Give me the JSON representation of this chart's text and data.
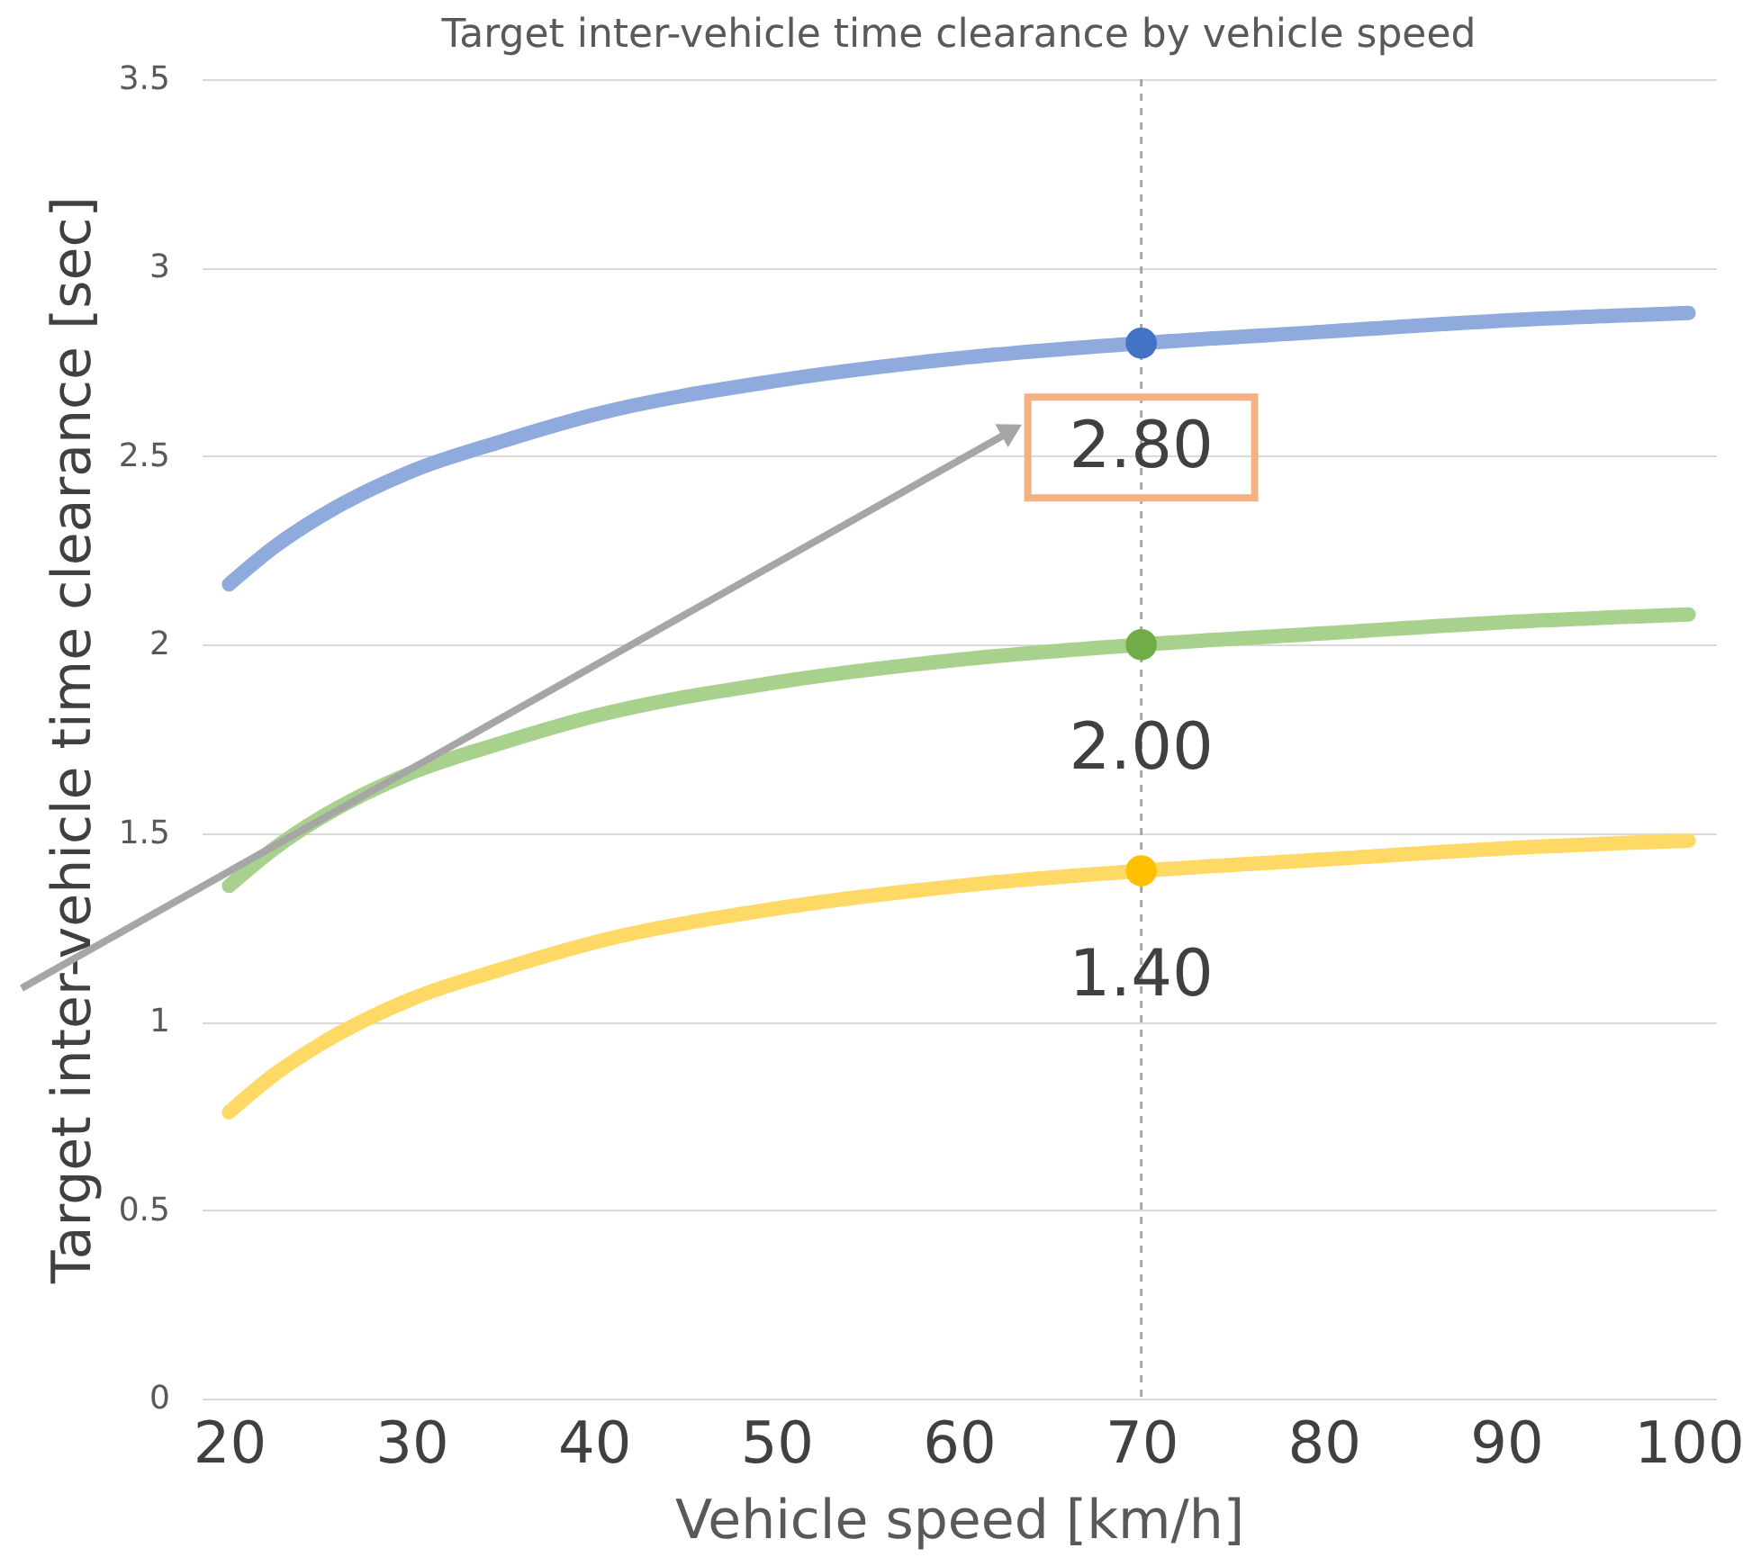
{
  "chart_data": {
    "type": "line",
    "title": "Target inter-vehicle time clearance by vehicle speed",
    "xlabel": "Vehicle speed [km/h]",
    "ylabel": "Target inter-vehicle time clearance [sec]",
    "x": [
      20,
      22.5,
      25,
      30,
      35,
      40,
      50,
      60,
      70,
      80,
      90,
      100
    ],
    "series": [
      {
        "color": "#8faadc",
        "values": [
          2.16,
          2.26,
          2.34,
          2.46,
          2.54,
          2.61,
          2.7,
          2.76,
          2.8,
          2.83,
          2.86,
          2.88
        ]
      },
      {
        "color": "#a9d18e",
        "values": [
          1.36,
          1.46,
          1.54,
          1.66,
          1.74,
          1.81,
          1.9,
          1.96,
          2.0,
          2.03,
          2.06,
          2.08
        ]
      },
      {
        "color": "#ffd966",
        "values": [
          0.76,
          0.86,
          0.94,
          1.06,
          1.14,
          1.21,
          1.3,
          1.36,
          1.4,
          1.43,
          1.46,
          1.48
        ]
      },
      {
        "type": "scatter",
        "marker": "circle",
        "color": "#4472c4",
        "values": [
          null,
          null,
          null,
          null,
          null,
          null,
          null,
          null,
          2.8,
          null,
          null,
          null
        ],
        "value_labels": [
          null,
          null,
          null,
          null,
          null,
          null,
          null,
          null,
          "2.80",
          null,
          null,
          null
        ]
      },
      {
        "type": "scatter",
        "marker": "circle",
        "color": "#70ad47",
        "values": [
          null,
          null,
          null,
          null,
          null,
          null,
          null,
          null,
          2.0,
          null,
          null,
          null
        ],
        "value_labels": [
          null,
          null,
          null,
          null,
          null,
          null,
          null,
          null,
          "2.00",
          null,
          null,
          null
        ]
      },
      {
        "type": "scatter",
        "marker": "circle",
        "color": "#ffc000",
        "values": [
          null,
          null,
          null,
          null,
          null,
          null,
          null,
          null,
          1.4,
          null,
          null,
          null
        ],
        "value_labels": [
          null,
          null,
          null,
          null,
          null,
          null,
          null,
          null,
          "1.40",
          null,
          null,
          null
        ]
      }
    ],
    "xlim": [
      18.5,
      101.5
    ],
    "xticks": [
      20,
      30,
      40,
      50,
      60,
      70,
      80,
      90,
      100
    ],
    "ylim": [
      0,
      3.5
    ],
    "yticks": [
      0,
      0.5,
      1,
      1.5,
      2,
      2.5,
      3,
      3.5
    ],
    "grid": "y",
    "marker": "none",
    "line_style": "solid",
    "ref_lines": [
      {
        "axis": "x",
        "value": 70,
        "color": "#a6a6a6",
        "line_style": "dashed"
      }
    ]
  }
}
